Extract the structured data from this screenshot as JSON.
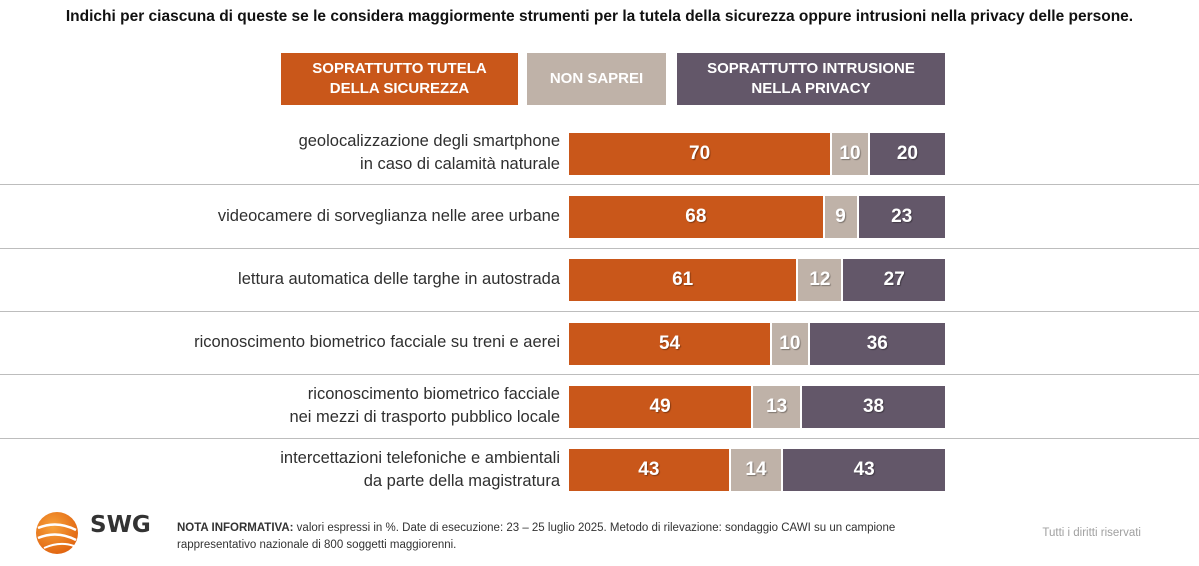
{
  "title": "Indichi per ciascuna di queste se le considera maggiormente strumenti per la tutela della sicurezza oppure intrusioni nella privacy delle persone.",
  "colors": {
    "tutela": "#c9571a",
    "non_saprei": "#bfb2a8",
    "intrusione": "#635769"
  },
  "chart_data": {
    "type": "bar",
    "orientation": "horizontal",
    "stacked": true,
    "unit": "%",
    "categories": [
      "geolocalizzazione degli smartphone\nin caso di calamità naturale",
      "videocamere di sorveglianza nelle aree urbane",
      "lettura automatica delle targhe in autostrada",
      "riconoscimento biometrico facciale su treni e aerei",
      "riconoscimento biometrico facciale\nnei mezzi di trasporto pubblico locale",
      "intercettazioni telefoniche e ambientali\nda parte della magistratura"
    ],
    "series": [
      {
        "name": "SOPRATTUTTO TUTELA\nDELLA SICUREZZA",
        "key": "tutela",
        "values": [
          70,
          68,
          61,
          54,
          49,
          43
        ]
      },
      {
        "name": "NON SAPREI",
        "key": "non_saprei",
        "values": [
          10,
          9,
          12,
          10,
          13,
          14
        ]
      },
      {
        "name": "SOPRATTUTTO INTRUSIONE\nNELLA PRIVACY",
        "key": "intrusione",
        "values": [
          20,
          23,
          27,
          36,
          38,
          43
        ]
      }
    ]
  },
  "footer": {
    "nota_label": "NOTA INFORMATIVA:",
    "nota_text": " valori espressi in %. Date di esecuzione: 23 – 25 luglio 2025. Metodo di rilevazione: sondaggio CAWI su un campione rappresentativo nazionale di 800 soggetti maggiorenni.",
    "rights": "Tutti i diritti riservati",
    "logo_text": "SWG"
  }
}
